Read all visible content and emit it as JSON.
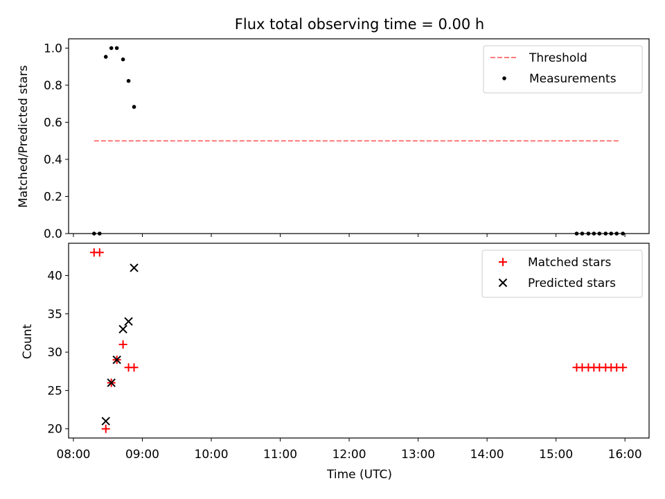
{
  "chart_data": {
    "title": "Flux total observing time = 0.00 h",
    "xlabel": "Time (UTC)",
    "x_ticks": [
      "08:00",
      "09:00",
      "10:00",
      "11:00",
      "12:00",
      "13:00",
      "14:00",
      "15:00",
      "16:00"
    ],
    "x_range_hours": [
      7.93,
      16.35
    ],
    "panels": [
      {
        "type": "scatter",
        "ylabel": "Matched/Predicted stars",
        "ylim": [
          0,
          1.05
        ],
        "y_ticks": [
          0.0,
          0.2,
          0.4,
          0.6,
          0.8,
          1.0
        ],
        "y_tick_labels": [
          "0.0",
          "0.2",
          "0.4",
          "0.6",
          "0.8",
          "1.0"
        ],
        "legend_position": "top-right",
        "threshold": {
          "name": "Threshold",
          "value": 0.5,
          "x_start": 8.3,
          "x_end": 15.93,
          "color": "#ff7777",
          "style": "dashed"
        },
        "series": [
          {
            "name": "Measurements",
            "marker": "dot",
            "color": "#000000",
            "points": [
              [
                8.3,
                0.0
              ],
              [
                8.38,
                0.0
              ],
              [
                8.47,
                0.953
              ],
              [
                8.55,
                1.0
              ],
              [
                8.63,
                1.0
              ],
              [
                8.72,
                0.939
              ],
              [
                8.8,
                0.823
              ],
              [
                8.88,
                0.683
              ],
              [
                15.3,
                0.0
              ],
              [
                15.38,
                0.0
              ],
              [
                15.47,
                0.0
              ],
              [
                15.55,
                0.0
              ],
              [
                15.63,
                0.0
              ],
              [
                15.72,
                0.0
              ],
              [
                15.8,
                0.0
              ],
              [
                15.88,
                0.0
              ],
              [
                15.97,
                0.0
              ]
            ]
          }
        ]
      },
      {
        "type": "scatter",
        "ylabel": "Count",
        "ylim": [
          18.8,
          44.2
        ],
        "y_ticks": [
          20,
          25,
          30,
          35,
          40
        ],
        "y_tick_labels": [
          "20",
          "25",
          "30",
          "35",
          "40"
        ],
        "legend_position": "top-right",
        "series": [
          {
            "name": "Matched stars",
            "marker": "plus",
            "color": "#ff0000",
            "points": [
              [
                8.3,
                43
              ],
              [
                8.38,
                43
              ],
              [
                8.47,
                20
              ],
              [
                8.55,
                26
              ],
              [
                8.63,
                29
              ],
              [
                8.72,
                31
              ],
              [
                8.8,
                28
              ],
              [
                8.88,
                28
              ],
              [
                15.3,
                28
              ],
              [
                15.38,
                28
              ],
              [
                15.47,
                28
              ],
              [
                15.55,
                28
              ],
              [
                15.63,
                28
              ],
              [
                15.72,
                28
              ],
              [
                15.8,
                28
              ],
              [
                15.88,
                28
              ],
              [
                15.97,
                28
              ]
            ]
          },
          {
            "name": "Predicted stars",
            "marker": "x",
            "color": "#000000",
            "points": [
              [
                8.47,
                21
              ],
              [
                8.55,
                26
              ],
              [
                8.63,
                29
              ],
              [
                8.72,
                33
              ],
              [
                8.8,
                34
              ],
              [
                8.88,
                41
              ]
            ]
          }
        ]
      }
    ]
  }
}
